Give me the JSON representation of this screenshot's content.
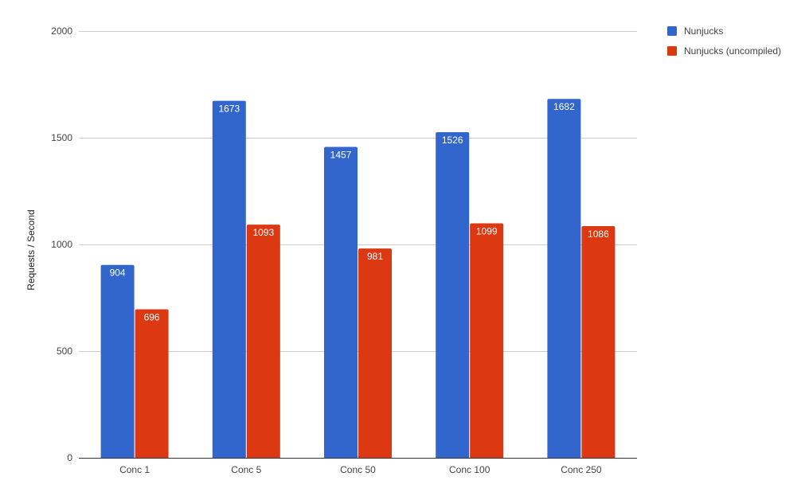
{
  "chart_data": {
    "type": "bar",
    "title": "",
    "xlabel": "",
    "ylabel": "Requests / Second",
    "ylim": [
      0,
      2000
    ],
    "yticks": [
      0,
      500,
      1000,
      1500,
      2000
    ],
    "grid": true,
    "legend_position": "right",
    "categories": [
      "Conc 1",
      "Conc 5",
      "Conc 50",
      "Conc 100",
      "Conc 250"
    ],
    "series": [
      {
        "name": "Nunjucks",
        "color": "#3366cc",
        "values": [
          904,
          1673,
          1457,
          1526,
          1682
        ]
      },
      {
        "name": "Nunjucks (uncompiled)",
        "color": "#dc3912",
        "values": [
          696,
          1093,
          981,
          1099,
          1086
        ]
      }
    ]
  }
}
